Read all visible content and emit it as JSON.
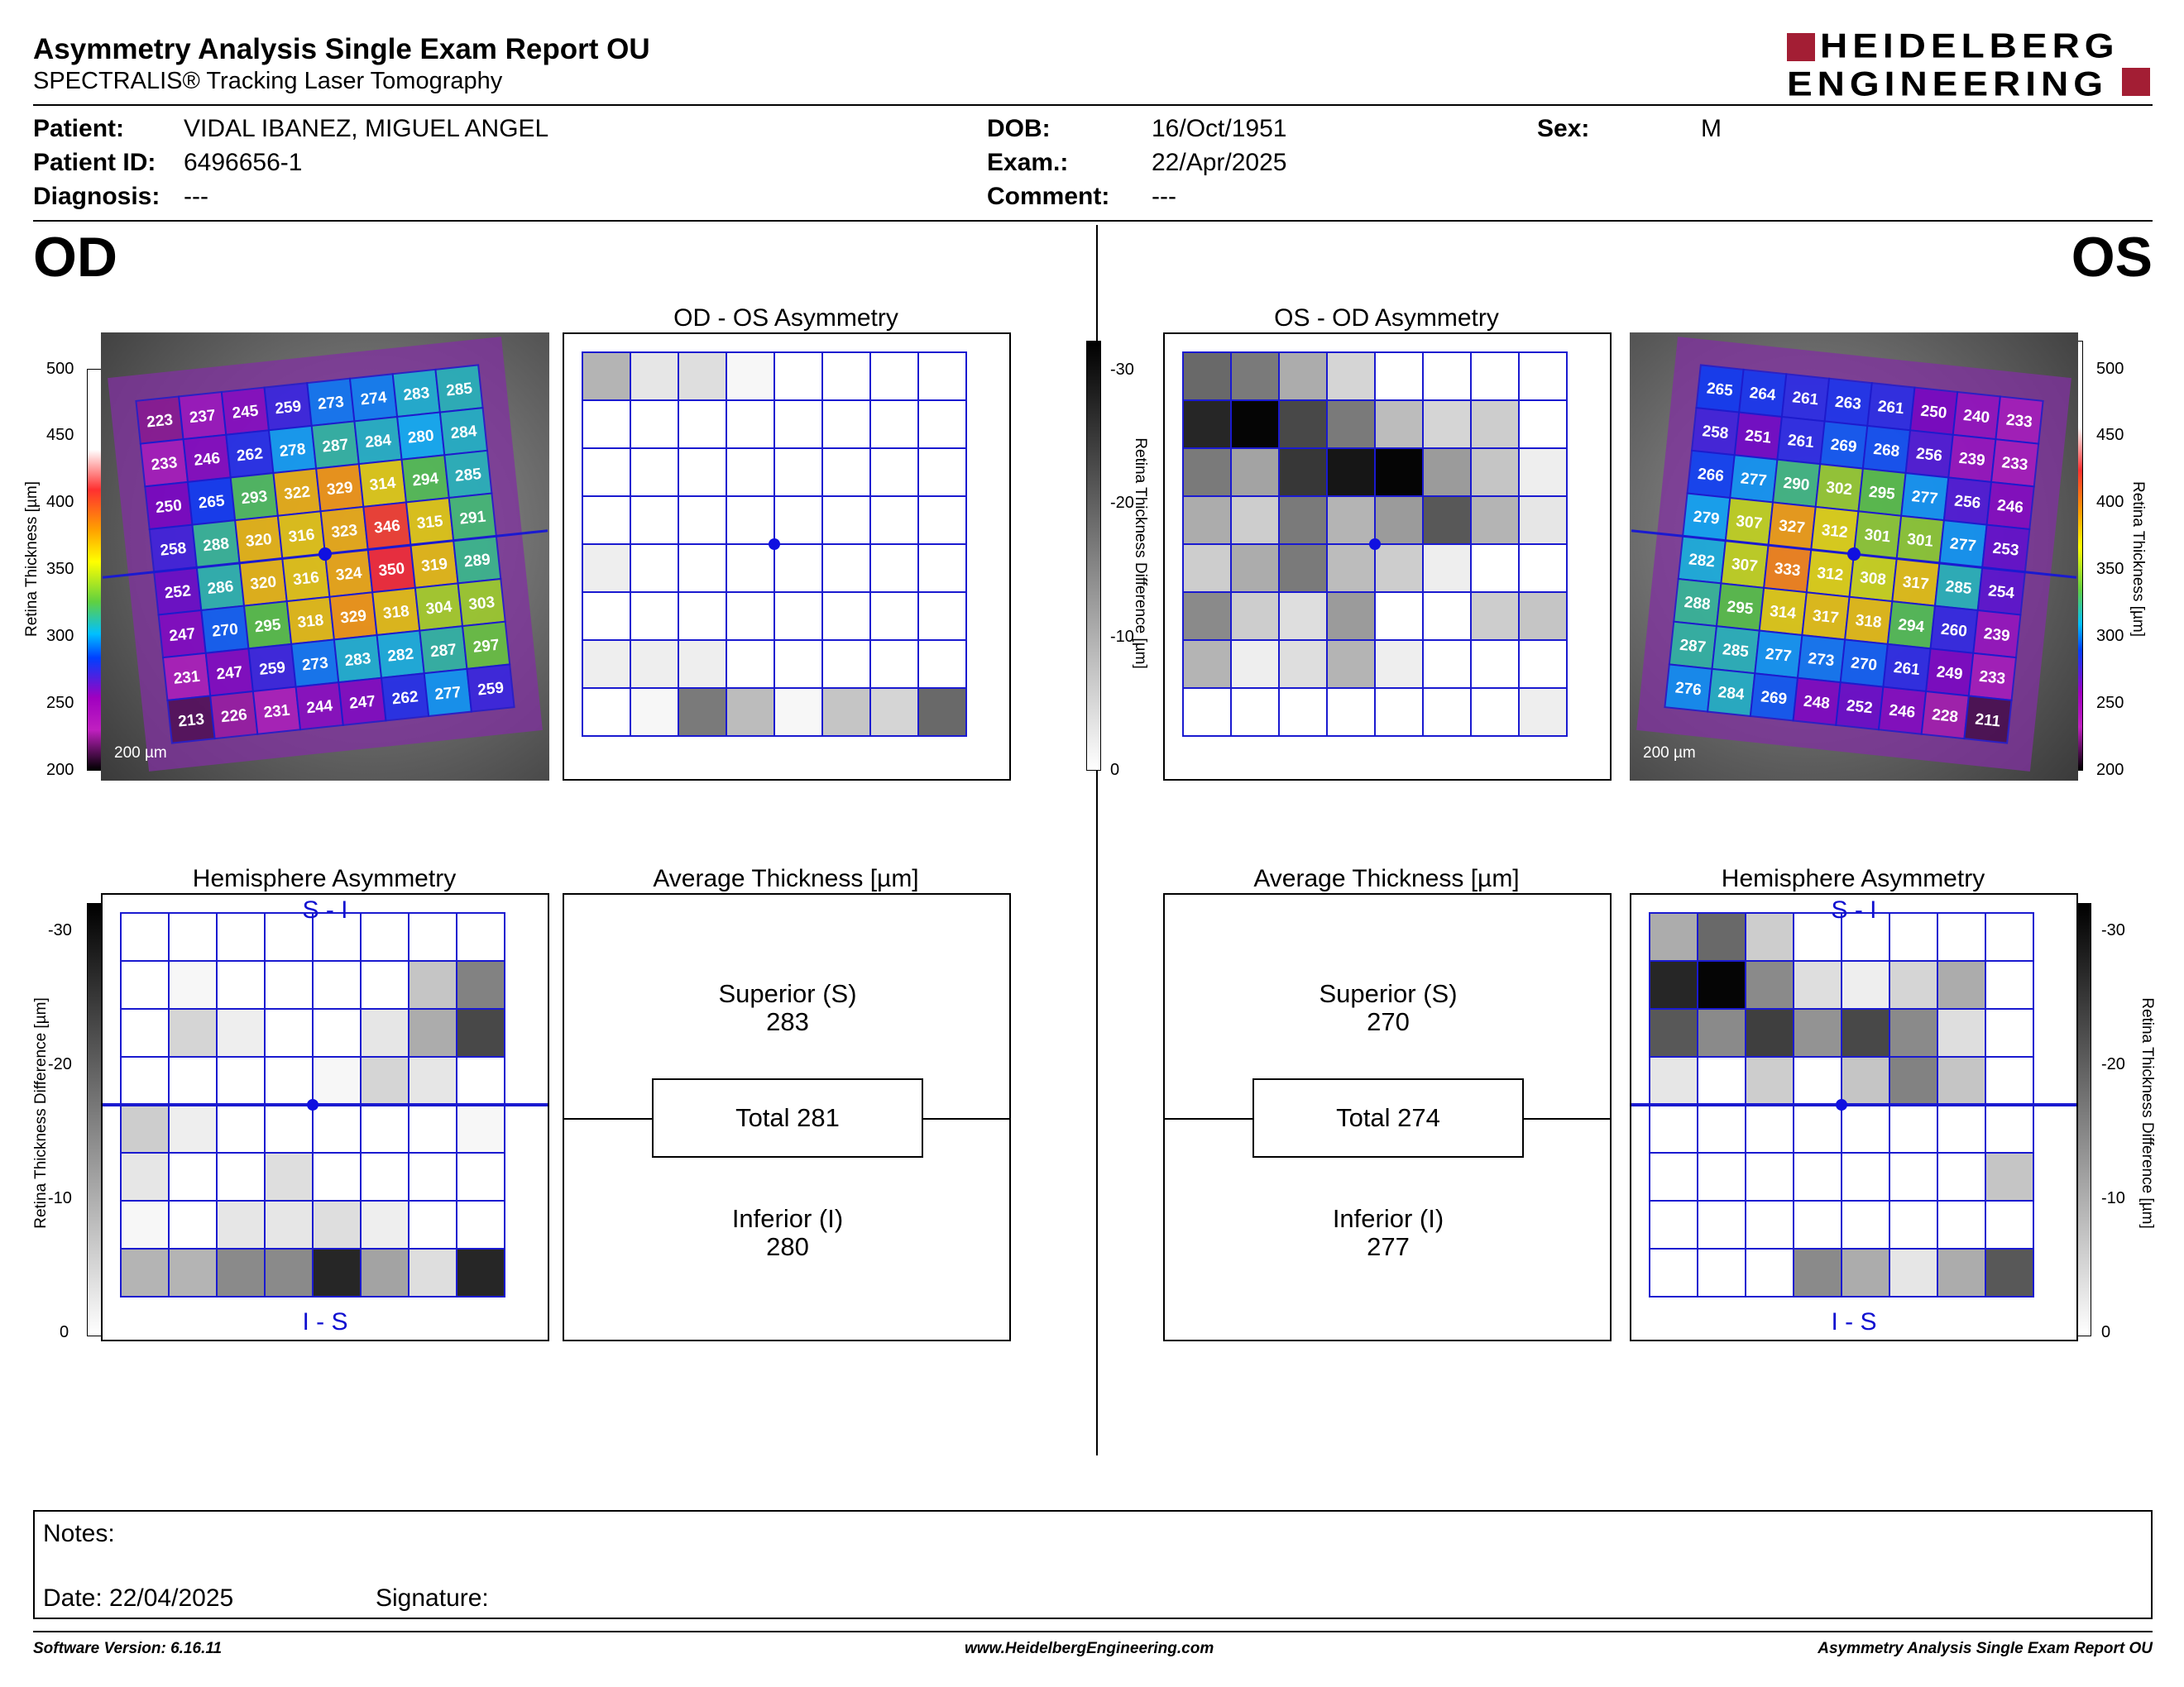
{
  "header": {
    "title": "Asymmetry Analysis Single Exam Report OU",
    "subtitle": "SPECTRALIS® Tracking Laser Tomography",
    "logo_line1": "HEIDELBERG",
    "logo_line2": "ENGINEERING"
  },
  "patient": {
    "patient_label": "Patient:",
    "patient": "VIDAL IBANEZ, MIGUEL ANGEL",
    "id_label": "Patient ID:",
    "id": "6496656-1",
    "diagnosis_label": "Diagnosis:",
    "diagnosis": "---",
    "dob_label": "DOB:",
    "dob": "16/Oct/1951",
    "exam_label": "Exam.:",
    "exam": "22/Apr/2025",
    "comment_label": "Comment:",
    "comment": "---",
    "sex_label": "Sex:",
    "sex": "M"
  },
  "od_label": "OD",
  "os_label": "OS",
  "titles": {
    "od_os": "OD - OS Asymmetry",
    "os_od": "OS - OD Asymmetry",
    "hemi": "Hemisphere Asymmetry",
    "avg": "Average Thickness [µm]"
  },
  "thickness_scale": {
    "label": "Retina Thickness [µm]",
    "ticks": [
      "500",
      "450",
      "400",
      "350",
      "300",
      "250",
      "200"
    ]
  },
  "difference_scale": {
    "label": "Retina Thickness Difference [µm]",
    "ticks": [
      "-30",
      "-20",
      "-10",
      "0"
    ]
  },
  "scale_bar": "200 µm",
  "hemi_top": "S - I",
  "hemi_bottom": "I - S",
  "od": {
    "superior_label": "Superior (S)",
    "superior": "283",
    "total": "Total 281",
    "inferior_label": "Inferior (I)",
    "inferior": "280",
    "grid": [
      [
        223,
        237,
        245,
        259,
        273,
        274,
        283,
        285
      ],
      [
        233,
        246,
        262,
        278,
        287,
        284,
        280,
        284
      ],
      [
        250,
        265,
        293,
        322,
        329,
        314,
        294,
        285
      ],
      [
        258,
        288,
        320,
        316,
        323,
        346,
        315,
        291
      ],
      [
        252,
        286,
        320,
        316,
        324,
        350,
        319,
        289
      ],
      [
        247,
        270,
        295,
        318,
        329,
        318,
        304,
        303
      ],
      [
        231,
        247,
        259,
        273,
        283,
        282,
        287,
        297
      ],
      [
        213,
        226,
        231,
        244,
        247,
        262,
        277,
        259
      ]
    ],
    "asym_gray": [
      [
        9,
        3,
        4,
        1,
        0,
        0,
        0,
        0
      ],
      [
        0,
        0,
        0,
        0,
        0,
        0,
        0,
        0
      ],
      [
        0,
        0,
        0,
        0,
        0,
        0,
        0,
        0
      ],
      [
        0,
        0,
        0,
        0,
        0,
        0,
        0,
        0
      ],
      [
        2,
        0,
        0,
        0,
        0,
        0,
        0,
        0
      ],
      [
        0,
        0,
        0,
        0,
        0,
        0,
        0,
        0
      ],
      [
        2,
        2,
        2,
        0,
        0,
        0,
        0,
        0
      ],
      [
        0,
        1,
        16,
        8,
        1,
        7,
        5,
        18
      ]
    ],
    "hemi_gray": [
      [
        0,
        0,
        0,
        0,
        0,
        0,
        0,
        0
      ],
      [
        0,
        1,
        0,
        0,
        0,
        0,
        7,
        15
      ],
      [
        0,
        5,
        2,
        0,
        0,
        3,
        10,
        22
      ],
      [
        0,
        0,
        0,
        0,
        1,
        5,
        3,
        0
      ],
      [
        6,
        2,
        0,
        0,
        0,
        0,
        0,
        1
      ],
      [
        3,
        0,
        0,
        4,
        0,
        0,
        0,
        0
      ],
      [
        1,
        0,
        3,
        3,
        4,
        2,
        0,
        0
      ],
      [
        9,
        9,
        14,
        14,
        26,
        11,
        4,
        26
      ]
    ]
  },
  "os": {
    "superior_label": "Superior (S)",
    "superior": "270",
    "total": "Total 274",
    "inferior_label": "Inferior (I)",
    "inferior": "277",
    "grid": [
      [
        265,
        264,
        261,
        263,
        261,
        250,
        240,
        233
      ],
      [
        258,
        251,
        261,
        269,
        268,
        256,
        239,
        233
      ],
      [
        266,
        277,
        290,
        302,
        295,
        277,
        256,
        246
      ],
      [
        279,
        307,
        327,
        312,
        301,
        301,
        277,
        253
      ],
      [
        282,
        307,
        333,
        312,
        308,
        317,
        285,
        254
      ],
      [
        288,
        295,
        314,
        317,
        318,
        294,
        260,
        239
      ],
      [
        287,
        285,
        277,
        273,
        270,
        261,
        249,
        233
      ],
      [
        276,
        284,
        269,
        248,
        252,
        246,
        228,
        211
      ]
    ],
    "asym_gray": [
      [
        18,
        16,
        10,
        5,
        0,
        0,
        0,
        0
      ],
      [
        26,
        30,
        22,
        16,
        8,
        5,
        6,
        0
      ],
      [
        16,
        11,
        24,
        28,
        30,
        12,
        7,
        2
      ],
      [
        10,
        6,
        16,
        9,
        12,
        20,
        9,
        3
      ],
      [
        6,
        10,
        16,
        8,
        6,
        2,
        0,
        0
      ],
      [
        14,
        6,
        4,
        12,
        0,
        0,
        6,
        7
      ],
      [
        9,
        2,
        4,
        9,
        2,
        0,
        0,
        0
      ],
      [
        0,
        0,
        0,
        0,
        0,
        0,
        0,
        2
      ]
    ],
    "hemi_gray": [
      [
        10,
        18,
        6,
        0,
        0,
        0,
        0,
        0
      ],
      [
        26,
        30,
        14,
        4,
        2,
        5,
        10,
        0
      ],
      [
        20,
        14,
        23,
        13,
        22,
        14,
        4,
        0
      ],
      [
        3,
        0,
        6,
        0,
        7,
        15,
        7,
        0
      ],
      [
        0,
        0,
        0,
        0,
        0,
        0,
        0,
        0
      ],
      [
        0,
        0,
        0,
        0,
        0,
        0,
        0,
        7
      ],
      [
        0,
        0,
        0,
        0,
        0,
        0,
        0,
        0
      ],
      [
        0,
        0,
        0,
        14,
        10,
        3,
        10,
        20
      ]
    ]
  },
  "notes": {
    "notes_label": "Notes:",
    "date_label": "Date: 22/04/2025",
    "signature_label": "Signature:"
  },
  "footer": {
    "software": "Software Version: 6.16.11",
    "website": "www.HeidelbergEngineering.com",
    "report": "Asymmetry Analysis Single Exam Report OU"
  }
}
